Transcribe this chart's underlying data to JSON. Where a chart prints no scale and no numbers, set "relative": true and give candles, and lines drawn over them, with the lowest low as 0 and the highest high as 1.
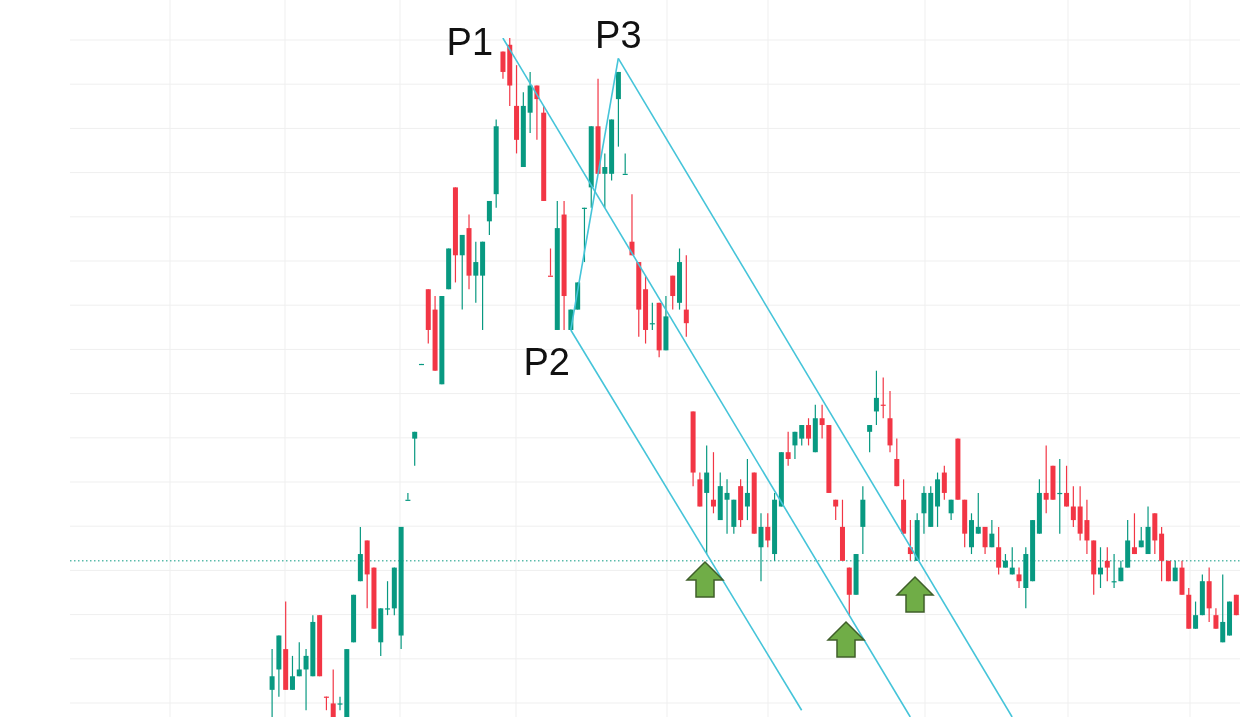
{
  "chart_data": {
    "type": "candlestick",
    "relative": true,
    "grid": true,
    "colors": [
      "#089981",
      "#089981",
      "#f23645",
      "#089981",
      "#089981",
      "#089981",
      "#089981",
      "#f23645",
      "#f23645",
      "#f23645",
      "#089981",
      "#089981",
      "#089981",
      "#089981",
      "#f23645",
      "#f23645",
      "#089981",
      "#089981",
      "#089981",
      "#089981",
      "#089981",
      "#089981",
      "#089981",
      "#f23645",
      "#f23645",
      "#089981",
      "#089981",
      "#f23645",
      "#089981",
      "#f23645",
      "#089981",
      "#089981",
      "#089981",
      "#089981",
      "#f23645",
      "#f23645",
      "#f23645",
      "#089981",
      "#089981",
      "#f23645",
      "#f23645",
      "#f23645",
      "#089981",
      "#f23645",
      "#089981",
      "#089981",
      "#089981",
      "#089981",
      "#f23645",
      "#089981",
      "#089981",
      "#089981",
      "#089981",
      "#f23645",
      "#f23645",
      "#f23645",
      "#089981",
      "#f23645",
      "#089981",
      "#f23645",
      "#089981",
      "#f23645",
      "#f23645",
      "#f23645",
      "#089981",
      "#f23645",
      "#089981",
      "#089981",
      "#089981",
      "#f23645",
      "#089981",
      "#f23645",
      "#089981",
      "#f23645",
      "#089981",
      "#089981",
      "#f23645",
      "#089981",
      "#089981",
      "#f23645",
      "#089981",
      "#f23645",
      "#f23645",
      "#f23645",
      "#f23645",
      "#f23645",
      "#089981",
      "#089981",
      "#089981",
      "#089981",
      "#f23645",
      "#f23645",
      "#f23645",
      "#f23645",
      "#f23645",
      "#089981",
      "#089981",
      "#089981",
      "#089981",
      "#f23645",
      "#089981",
      "#f23645",
      "#f23645",
      "#089981",
      "#089981",
      "#f23645",
      "#089981",
      "#f23645",
      "#089981",
      "#089981",
      "#f23645",
      "#089981",
      "#089981",
      "#089981",
      "#f23645",
      "#f23645",
      "#089981",
      "#f23645",
      "#f23645",
      "#f23645",
      "#f23645",
      "#f23645",
      "#089981",
      "#f23645",
      "#089981",
      "#089981",
      "#089981",
      "#f23645",
      "#089981",
      "#089981",
      "#f23645",
      "#f23645",
      "#f23645",
      "#089981",
      "#f23645",
      "#f23645",
      "#089981",
      "#089981",
      "#f23645",
      "#f23645",
      "#089981",
      "#089981",
      "#f23645"
    ],
    "categories": [
      null,
      null,
      null,
      null,
      null,
      null,
      null,
      null,
      null,
      null,
      null,
      null,
      null,
      null,
      null,
      null,
      null,
      null,
      null,
      null,
      null,
      null,
      null,
      null,
      null,
      null,
      null,
      null,
      null,
      null,
      null,
      null,
      null,
      null,
      null,
      null,
      null,
      null,
      null,
      null,
      null,
      null,
      null,
      null,
      null,
      null,
      null,
      null,
      null,
      null,
      null,
      null,
      null,
      null,
      null,
      null,
      null,
      null,
      null,
      null,
      null,
      null,
      null,
      null,
      null,
      null,
      null,
      null,
      null,
      null,
      null,
      null,
      null,
      null,
      null,
      null,
      null,
      null,
      null,
      null,
      null,
      null,
      null,
      null,
      null,
      null,
      null,
      null,
      null,
      null,
      null,
      null,
      null,
      null,
      null,
      null,
      null,
      null,
      null,
      null,
      null,
      null,
      null,
      null,
      null,
      null,
      null,
      null,
      null,
      null,
      null,
      null,
      null,
      null,
      null,
      null,
      null,
      null,
      null,
      null,
      null,
      null,
      null,
      null,
      null,
      null,
      null,
      null,
      null,
      null,
      null,
      null,
      null,
      null,
      null,
      null,
      null,
      null,
      null,
      null,
      null,
      null,
      null
    ],
    "ohlc": [
      [
        0.04,
        0.1,
        0,
        0.06
      ],
      [
        0.07,
        0.12,
        0.03,
        0.12
      ],
      [
        0.1,
        0.17,
        0.04,
        0.04
      ],
      [
        0.04,
        0.09,
        0.04,
        0.06
      ],
      [
        0.06,
        0.11,
        0.06,
        0.07
      ],
      [
        0.07,
        0.1,
        0.01,
        0.09
      ],
      [
        0.06,
        0.15,
        0.06,
        0.14
      ],
      [
        0.15,
        0.15,
        0.06,
        0.06
      ],
      [
        0.03,
        0.03,
        0.01,
        0.03
      ],
      [
        0.02,
        0.07,
        0,
        0
      ],
      [
        0.02,
        0.03,
        0.01,
        0.02
      ],
      [
        0,
        0.1,
        0,
        0.1
      ],
      [
        0.11,
        0.18,
        0.11,
        0.18
      ],
      [
        0.2,
        0.28,
        0.2,
        0.24
      ],
      [
        0.26,
        0.26,
        0.16,
        0.21
      ],
      [
        0.22,
        0.22,
        0.13,
        0.13
      ],
      [
        0.11,
        0.16,
        0.09,
        0.16
      ],
      [
        0.16,
        0.2,
        0.15,
        0.16
      ],
      [
        0.16,
        0.22,
        0.15,
        0.22
      ],
      [
        0.12,
        0.28,
        0.1,
        0.28
      ],
      [
        0.32,
        0.33,
        0.32,
        0.32
      ],
      [
        0.41,
        0.42,
        0.37,
        0.42
      ],
      [
        0.52,
        0.52,
        0.52,
        0.52
      ],
      [
        0.63,
        0.63,
        0.55,
        0.57
      ],
      [
        0.6,
        0.62,
        0.51,
        0.51
      ],
      [
        0.49,
        0.62,
        0.49,
        0.62
      ],
      [
        0.63,
        0.69,
        0.63,
        0.69
      ],
      [
        0.78,
        0.78,
        0.64,
        0.68
      ],
      [
        0.68,
        0.71,
        0.6,
        0.71
      ],
      [
        0.72,
        0.74,
        0.63,
        0.65
      ],
      [
        0.65,
        0.7,
        0.61,
        0.67
      ],
      [
        0.65,
        0.7,
        0.57,
        0.7
      ],
      [
        0.73,
        0.76,
        0.71,
        0.76
      ],
      [
        0.77,
        0.88,
        0.75,
        0.87
      ],
      [
        0.98,
        0.98,
        0.94,
        0.95
      ],
      [
        0.99,
        1,
        0.9,
        0.93
      ],
      [
        0.9,
        0.96,
        0.83,
        0.85
      ],
      [
        0.81,
        0.92,
        0.81,
        0.9
      ],
      [
        0.89,
        0.95,
        0.86,
        0.93
      ],
      [
        0.93,
        0.93,
        0.85,
        0.91
      ],
      [
        0.89,
        0.9,
        0.76,
        0.76
      ],
      [
        0.65,
        0.69,
        0.65,
        0.65
      ],
      [
        0.57,
        0.76,
        0.57,
        0.72
      ],
      [
        0.74,
        0.76,
        0.57,
        0.62
      ],
      [
        0.57,
        0.6,
        0.57,
        0.6
      ],
      [
        0.6,
        0.64,
        0.6,
        0.64
      ],
      [
        0.75,
        0.75,
        0.67,
        0.75
      ],
      [
        0.78,
        0.87,
        0.75,
        0.87
      ],
      [
        0.87,
        0.94,
        0.8,
        0.8
      ],
      [
        0.8,
        0.83,
        0.75,
        0.81
      ],
      [
        0.8,
        0.88,
        0.79,
        0.88
      ],
      [
        0.91,
        0.95,
        0.84,
        0.95
      ],
      [
        0.8,
        0.83,
        0.8,
        0.8
      ],
      [
        0.7,
        0.77,
        0.68,
        0.68
      ],
      [
        0.67,
        0.67,
        0.56,
        0.6
      ],
      [
        0.63,
        0.65,
        0.55,
        0.57
      ],
      [
        0.58,
        0.61,
        0.57,
        0.58
      ],
      [
        0.61,
        0.61,
        0.53,
        0.54
      ],
      [
        0.54,
        0.62,
        0.54,
        0.59
      ],
      [
        0.65,
        0.65,
        0.6,
        0.62
      ],
      [
        0.61,
        0.69,
        0.6,
        0.67
      ],
      [
        0.6,
        0.68,
        0.56,
        0.58
      ],
      [
        0.45,
        0.45,
        0.34,
        0.36
      ],
      [
        0.35,
        0.36,
        0.31,
        0.31
      ],
      [
        0.33,
        0.4,
        0.24,
        0.36
      ],
      [
        0.32,
        0.39,
        0.3,
        0.31
      ],
      [
        0.29,
        0.36,
        0.29,
        0.34
      ],
      [
        0.32,
        0.35,
        0.27,
        0.33
      ],
      [
        0.28,
        0.32,
        0.27,
        0.32
      ],
      [
        0.34,
        0.35,
        0.28,
        0.29
      ],
      [
        0.31,
        0.38,
        0.29,
        0.33
      ],
      [
        0.36,
        0.36,
        0.27,
        0.27
      ],
      [
        0.25,
        0.3,
        0.2,
        0.28
      ],
      [
        0.28,
        0.3,
        0.25,
        0.26
      ],
      [
        0.24,
        0.33,
        0.23,
        0.32
      ],
      [
        0.31,
        0.39,
        0.31,
        0.39
      ],
      [
        0.39,
        0.42,
        0.37,
        0.38
      ],
      [
        0.4,
        0.42,
        0.38,
        0.42
      ],
      [
        0.41,
        0.43,
        0.4,
        0.43
      ],
      [
        0.43,
        0.44,
        0.4,
        0.41
      ],
      [
        0.39,
        0.46,
        0.39,
        0.44
      ],
      [
        0.44,
        0.46,
        0.41,
        0.43
      ],
      [
        0.43,
        0.43,
        0.33,
        0.33
      ],
      [
        0.32,
        0.32,
        0.29,
        0.31
      ],
      [
        0.28,
        0.32,
        0.23,
        0.23
      ],
      [
        0.22,
        0.22,
        0.15,
        0.18
      ],
      [
        0.18,
        0.24,
        0.18,
        0.24
      ],
      [
        0.28,
        0.34,
        0.24,
        0.32
      ],
      [
        0.42,
        0.43,
        0.39,
        0.43
      ],
      [
        0.45,
        0.51,
        0.43,
        0.47
      ],
      [
        0.46,
        0.5,
        0.44,
        0.46
      ],
      [
        0.44,
        0.48,
        0.39,
        0.4
      ],
      [
        0.38,
        0.41,
        0.34,
        0.34
      ],
      [
        0.32,
        0.35,
        0.27,
        0.27
      ],
      [
        0.25,
        0.29,
        0.23,
        0.24
      ],
      [
        0.23,
        0.3,
        0.23,
        0.29
      ],
      [
        0.3,
        0.34,
        0.27,
        0.33
      ],
      [
        0.28,
        0.34,
        0.28,
        0.33
      ],
      [
        0.31,
        0.36,
        0.28,
        0.35
      ],
      [
        0.36,
        0.37,
        0.32,
        0.33
      ],
      [
        0.3,
        0.32,
        0.29,
        0.32
      ],
      [
        0.41,
        0.41,
        0.32,
        0.32
      ],
      [
        0.32,
        0.32,
        0.25,
        0.27
      ],
      [
        0.25,
        0.3,
        0.24,
        0.29
      ],
      [
        0.27,
        0.33,
        0.27,
        0.28
      ],
      [
        0.28,
        0.28,
        0.24,
        0.25
      ],
      [
        0.25,
        0.29,
        0.25,
        0.27
      ],
      [
        0.25,
        0.28,
        0.21,
        0.22
      ],
      [
        0.22,
        0.24,
        0.22,
        0.23
      ],
      [
        0.21,
        0.25,
        0.21,
        0.22
      ],
      [
        0.21,
        0.22,
        0.19,
        0.2
      ],
      [
        0.19,
        0.25,
        0.16,
        0.24
      ],
      [
        0.2,
        0.29,
        0.2,
        0.29
      ],
      [
        0.27,
        0.35,
        0.27,
        0.33
      ],
      [
        0.33,
        0.4,
        0.3,
        0.32
      ],
      [
        0.37,
        0.37,
        0.32,
        0.32
      ],
      [
        0.33,
        0.38,
        0.27,
        0.33
      ],
      [
        0.33,
        0.37,
        0.31,
        0.31
      ],
      [
        0.31,
        0.34,
        0.28,
        0.29
      ],
      [
        0.31,
        0.34,
        0.26,
        0.27
      ],
      [
        0.29,
        0.32,
        0.24,
        0.26
      ],
      [
        0.26,
        0.26,
        0.18,
        0.21
      ],
      [
        0.21,
        0.25,
        0.19,
        0.22
      ],
      [
        0.23,
        0.25,
        0.2,
        0.22
      ],
      [
        0.2,
        0.24,
        0.19,
        0.2
      ],
      [
        0.2,
        0.23,
        0.2,
        0.22
      ],
      [
        0.22,
        0.29,
        0.22,
        0.26
      ],
      [
        0.25,
        0.3,
        0.24,
        0.24
      ],
      [
        0.25,
        0.28,
        0.25,
        0.26
      ],
      [
        0.24,
        0.31,
        0.24,
        0.28
      ],
      [
        0.3,
        0.3,
        0.24,
        0.26
      ],
      [
        0.27,
        0.28,
        0.2,
        0.23
      ],
      [
        0.23,
        0.23,
        0.2,
        0.2
      ],
      [
        0.2,
        0.23,
        0.2,
        0.22
      ],
      [
        0.22,
        0.23,
        0.18,
        0.18
      ],
      [
        0.18,
        0.19,
        0.13,
        0.13
      ],
      [
        0.13,
        0.17,
        0.13,
        0.15
      ],
      [
        0.15,
        0.21,
        0.15,
        0.2
      ],
      [
        0.2,
        0.22,
        0.14,
        0.16
      ],
      [
        0.15,
        0.16,
        0.13,
        0.13
      ],
      [
        0.11,
        0.21,
        0.11,
        0.14
      ],
      [
        0.12,
        0.17,
        0.12,
        0.17
      ],
      [
        0.18,
        0.18,
        0.15,
        0.15
      ]
    ],
    "series": [
      {
        "type": "line",
        "color": "#45c4d9",
        "values": [
          null,
          null,
          null,
          null,
          null,
          null,
          null,
          null,
          null,
          null,
          null,
          null,
          null,
          null,
          null,
          null,
          null,
          null,
          null,
          null,
          null,
          null,
          null,
          null,
          null,
          null,
          null,
          null,
          null,
          null,
          null,
          null,
          null,
          null,
          1,
          null,
          null,
          null,
          null,
          null,
          null,
          null,
          null,
          null,
          null,
          null,
          null,
          null,
          null,
          null,
          null,
          null,
          null,
          null,
          null,
          null,
          null,
          null,
          null,
          null,
          null,
          null,
          null,
          null,
          null,
          null,
          null,
          null,
          null,
          null,
          null,
          null,
          null,
          null,
          null,
          null,
          null,
          null,
          null,
          null,
          null,
          null,
          null,
          null,
          null,
          null,
          null,
          null,
          null,
          null,
          null,
          null,
          null,
          null,
          0,
          null,
          null,
          null,
          null,
          null,
          null,
          null,
          null,
          null,
          null,
          null,
          null,
          null,
          null,
          null,
          null,
          null,
          null,
          null,
          null,
          null,
          null,
          null,
          null,
          null,
          null,
          null,
          null,
          null,
          null,
          null,
          null,
          null,
          null,
          null,
          null,
          null,
          null,
          null,
          null,
          null,
          null,
          null,
          null,
          null,
          null,
          null,
          null
        ]
      },
      {
        "type": "line",
        "color": "#45c4d9",
        "values": [
          null,
          null,
          null,
          null,
          null,
          null,
          null,
          null,
          null,
          null,
          null,
          null,
          null,
          null,
          null,
          null,
          null,
          null,
          null,
          null,
          null,
          null,
          null,
          null,
          null,
          null,
          null,
          null,
          null,
          null,
          null,
          null,
          null,
          null,
          null,
          null,
          null,
          null,
          null,
          null,
          null,
          null,
          null,
          null,
          0.57,
          null,
          null,
          null,
          null,
          null,
          null,
          null,
          null,
          null,
          null,
          null,
          null,
          null,
          null,
          null,
          null,
          null,
          null,
          null,
          null,
          null,
          null,
          null,
          null,
          null,
          null,
          null,
          null,
          null,
          null,
          null,
          null,
          null,
          0.01,
          null,
          null,
          null,
          null,
          null,
          null,
          null,
          null,
          null,
          null,
          null,
          null,
          null,
          null,
          null,
          null,
          null,
          null,
          null,
          null,
          null,
          null,
          null,
          null,
          null,
          null,
          null,
          null,
          null,
          null,
          null,
          null,
          null,
          null,
          null,
          null,
          null,
          null,
          null,
          null,
          null,
          null,
          null,
          null,
          null,
          null,
          null,
          null,
          null,
          null,
          null,
          null,
          null,
          null,
          null,
          null,
          null,
          null,
          null,
          null,
          null,
          null,
          null,
          null
        ]
      },
      {
        "type": "line",
        "color": "#45c4d9",
        "values": [
          null,
          null,
          null,
          null,
          null,
          null,
          null,
          null,
          null,
          null,
          null,
          null,
          null,
          null,
          null,
          null,
          null,
          null,
          null,
          null,
          null,
          null,
          null,
          null,
          null,
          null,
          null,
          null,
          null,
          null,
          null,
          null,
          null,
          null,
          null,
          null,
          null,
          null,
          null,
          null,
          null,
          null,
          null,
          null,
          null,
          null,
          null,
          null,
          null,
          null,
          null,
          0.97,
          null,
          null,
          null,
          null,
          null,
          null,
          null,
          null,
          null,
          null,
          null,
          null,
          null,
          null,
          null,
          null,
          null,
          null,
          null,
          null,
          null,
          null,
          null,
          null,
          null,
          null,
          null,
          null,
          null,
          null,
          null,
          null,
          null,
          null,
          null,
          null,
          null,
          null,
          null,
          null,
          null,
          null,
          null,
          null,
          null,
          null,
          null,
          null,
          null,
          null,
          null,
          null,
          null,
          null,
          null,
          null,
          null,
          0,
          null,
          null,
          null,
          null,
          null,
          null,
          null,
          null,
          null,
          null,
          null,
          null,
          null,
          null,
          null,
          null,
          null,
          null,
          null,
          null,
          null,
          null,
          null,
          null,
          null,
          null,
          null,
          null,
          null,
          null,
          null,
          null,
          null
        ]
      },
      {
        "type": "line",
        "color": "#45c4d9",
        "values": [
          null,
          null,
          null,
          null,
          null,
          null,
          null,
          null,
          null,
          null,
          null,
          null,
          null,
          null,
          null,
          null,
          null,
          null,
          null,
          null,
          null,
          null,
          null,
          null,
          null,
          null,
          null,
          null,
          null,
          null,
          null,
          null,
          null,
          null,
          null,
          null,
          null,
          null,
          null,
          null,
          null,
          null,
          null,
          null,
          0.57,
          null,
          null,
          null,
          null,
          null,
          null,
          0.97,
          null,
          null,
          null,
          null,
          null,
          null,
          null,
          null,
          null,
          null,
          null,
          null,
          null,
          null,
          null,
          null,
          null,
          null,
          null,
          null,
          null,
          null,
          null,
          null,
          null,
          null,
          null,
          null,
          null,
          null,
          null,
          null,
          null,
          null,
          null,
          null,
          null,
          null,
          null,
          null,
          null,
          null,
          null,
          null,
          null,
          null,
          null,
          null,
          null,
          null,
          null,
          null,
          null,
          null,
          null,
          null,
          null,
          null,
          null,
          null,
          null,
          null,
          null,
          null,
          null,
          null,
          null,
          null,
          null,
          null,
          null,
          null,
          null,
          null,
          null,
          null,
          null,
          null,
          null,
          null,
          null,
          null,
          null,
          null,
          null,
          null,
          null,
          null,
          null,
          null,
          null
        ]
      }
    ],
    "ref_lines": [
      {
        "axis": "y",
        "value": 0.23,
        "color": "#089981",
        "line_style": "dotted"
      }
    ],
    "annotations": [
      "P1",
      "P2",
      "P3"
    ]
  }
}
